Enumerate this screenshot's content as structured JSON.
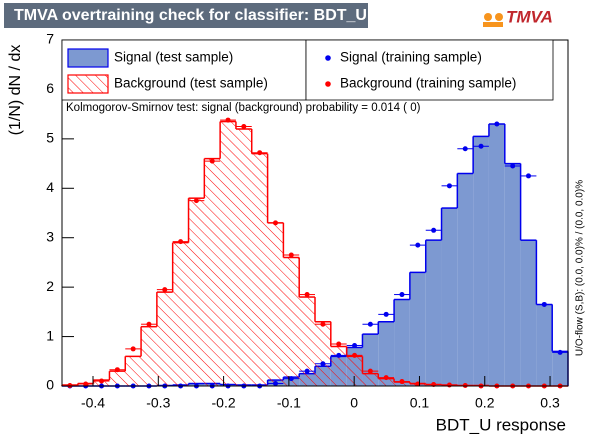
{
  "chart_data": {
    "type": "histogram",
    "title": "TMVA overtraining check for classifier: BDT_U",
    "logo": "TMVA",
    "x_label": "BDT_U response",
    "y_label": "(1/N) dN / dx",
    "annotation": "Kolmogorov-Smirnov test: signal (background) probability = 0.014 (    0)",
    "side_note": "U/O-flow (S,B): (0.0, 0.0)% / (0.0, 0.0)%",
    "xlim": [
      -0.4475,
      0.3275
    ],
    "ylim": [
      0,
      7
    ],
    "xticks": [
      {
        "value": -0.4,
        "label": "-0.4"
      },
      {
        "value": -0.3,
        "label": "-0.3"
      },
      {
        "value": -0.2,
        "label": "-0.2"
      },
      {
        "value": -0.1,
        "label": "-0.1"
      },
      0,
      0.1,
      0.2,
      0.3
    ],
    "yticks": [
      0,
      1,
      2,
      3,
      4,
      5,
      6,
      7
    ],
    "bins": [
      -0.4475,
      -0.4233,
      -0.3991,
      -0.3748,
      -0.3506,
      -0.3264,
      -0.3022,
      -0.278,
      -0.2537,
      -0.2295,
      -0.2053,
      -0.1811,
      -0.1569,
      -0.1326,
      -0.1084,
      -0.0842,
      -0.06,
      -0.0358,
      -0.0115,
      0.0127,
      0.0369,
      0.0611,
      0.0853,
      0.1096,
      0.1338,
      0.158,
      0.1822,
      0.2064,
      0.2307,
      0.2549,
      0.2791,
      0.3033,
      0.3275
    ],
    "series": [
      {
        "name": "Signal (test sample)",
        "color": "#7d99d1",
        "edge_color": "#0000ee",
        "style": "fill",
        "values": [
          0,
          0,
          0,
          0,
          0,
          0,
          0.01,
          0.02,
          0.05,
          0.05,
          0.03,
          0.02,
          0.02,
          0.12,
          0.18,
          0.25,
          0.4,
          0.6,
          0.78,
          1.05,
          1.3,
          1.75,
          2.3,
          2.95,
          3.6,
          4.3,
          5.05,
          5.3,
          4.5,
          2.95,
          1.65,
          0.7
        ]
      },
      {
        "name": "Background (test sample)",
        "color": "#ff0000",
        "edge_color": "#ff0000",
        "style": "hatch",
        "values": [
          0.02,
          0.05,
          0.12,
          0.3,
          0.6,
          1.2,
          1.9,
          2.9,
          3.8,
          4.6,
          5.35,
          5.2,
          4.7,
          3.3,
          2.6,
          1.8,
          1.3,
          0.8,
          0.6,
          0.25,
          0.15,
          0.08,
          0.05,
          0.03,
          0.02,
          0.01,
          0.01,
          0,
          0,
          0,
          0,
          0
        ]
      },
      {
        "name": "Signal (training sample)",
        "color": "#0000ee",
        "style": "points",
        "values": [
          0,
          0,
          0,
          0,
          0,
          0,
          0,
          0,
          0,
          0,
          0,
          0,
          0,
          0.05,
          0.15,
          0.3,
          0.45,
          0.62,
          0.82,
          1.25,
          1.45,
          1.85,
          2.85,
          3.15,
          4.05,
          4.8,
          4.85,
          5.3,
          4.45,
          4.25,
          1.65,
          0.68
        ]
      },
      {
        "name": "Background (training sample)",
        "color": "#ff0000",
        "style": "points",
        "values": [
          0.01,
          0.04,
          0.1,
          0.33,
          0.75,
          1.25,
          1.95,
          2.92,
          3.75,
          4.55,
          5.38,
          5.25,
          4.72,
          3.3,
          2.65,
          1.85,
          1.25,
          0.85,
          0.62,
          0.3,
          0.17,
          0.09,
          0.04,
          0.03,
          0.02,
          0.01,
          0,
          0,
          0,
          0,
          0,
          0
        ]
      }
    ]
  }
}
